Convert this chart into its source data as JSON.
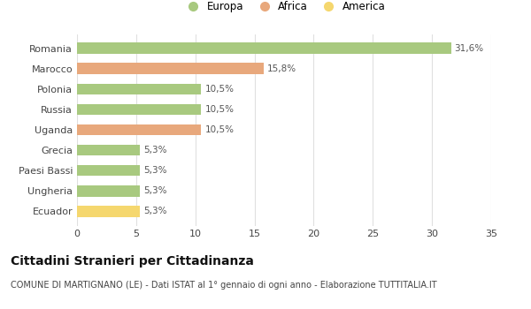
{
  "categories": [
    "Romania",
    "Marocco",
    "Polonia",
    "Russia",
    "Uganda",
    "Grecia",
    "Paesi Bassi",
    "Ungheria",
    "Ecuador"
  ],
  "values": [
    31.6,
    15.8,
    10.5,
    10.5,
    10.5,
    5.3,
    5.3,
    5.3,
    5.3
  ],
  "labels": [
    "31,6%",
    "15,8%",
    "10,5%",
    "10,5%",
    "10,5%",
    "5,3%",
    "5,3%",
    "5,3%",
    "5,3%"
  ],
  "colors": [
    "#a8c97f",
    "#e8a87c",
    "#a8c97f",
    "#a8c97f",
    "#e8a87c",
    "#a8c97f",
    "#a8c97f",
    "#a8c97f",
    "#f5d76e"
  ],
  "legend": [
    {
      "label": "Europa",
      "color": "#a8c97f"
    },
    {
      "label": "Africa",
      "color": "#e8a87c"
    },
    {
      "label": "America",
      "color": "#f5d76e"
    }
  ],
  "xlim": [
    0,
    35
  ],
  "xticks": [
    0,
    5,
    10,
    15,
    20,
    25,
    30,
    35
  ],
  "title": "Cittadini Stranieri per Cittadinanza",
  "subtitle": "COMUNE DI MARTIGNANO (LE) - Dati ISTAT al 1° gennaio di ogni anno - Elaborazione TUTTITALIA.IT",
  "bg_color": "#ffffff",
  "grid_color": "#e0e0e0",
  "bar_height": 0.55,
  "label_fontsize": 7.5,
  "tick_fontsize": 8,
  "title_fontsize": 10,
  "subtitle_fontsize": 7,
  "legend_fontsize": 8.5
}
